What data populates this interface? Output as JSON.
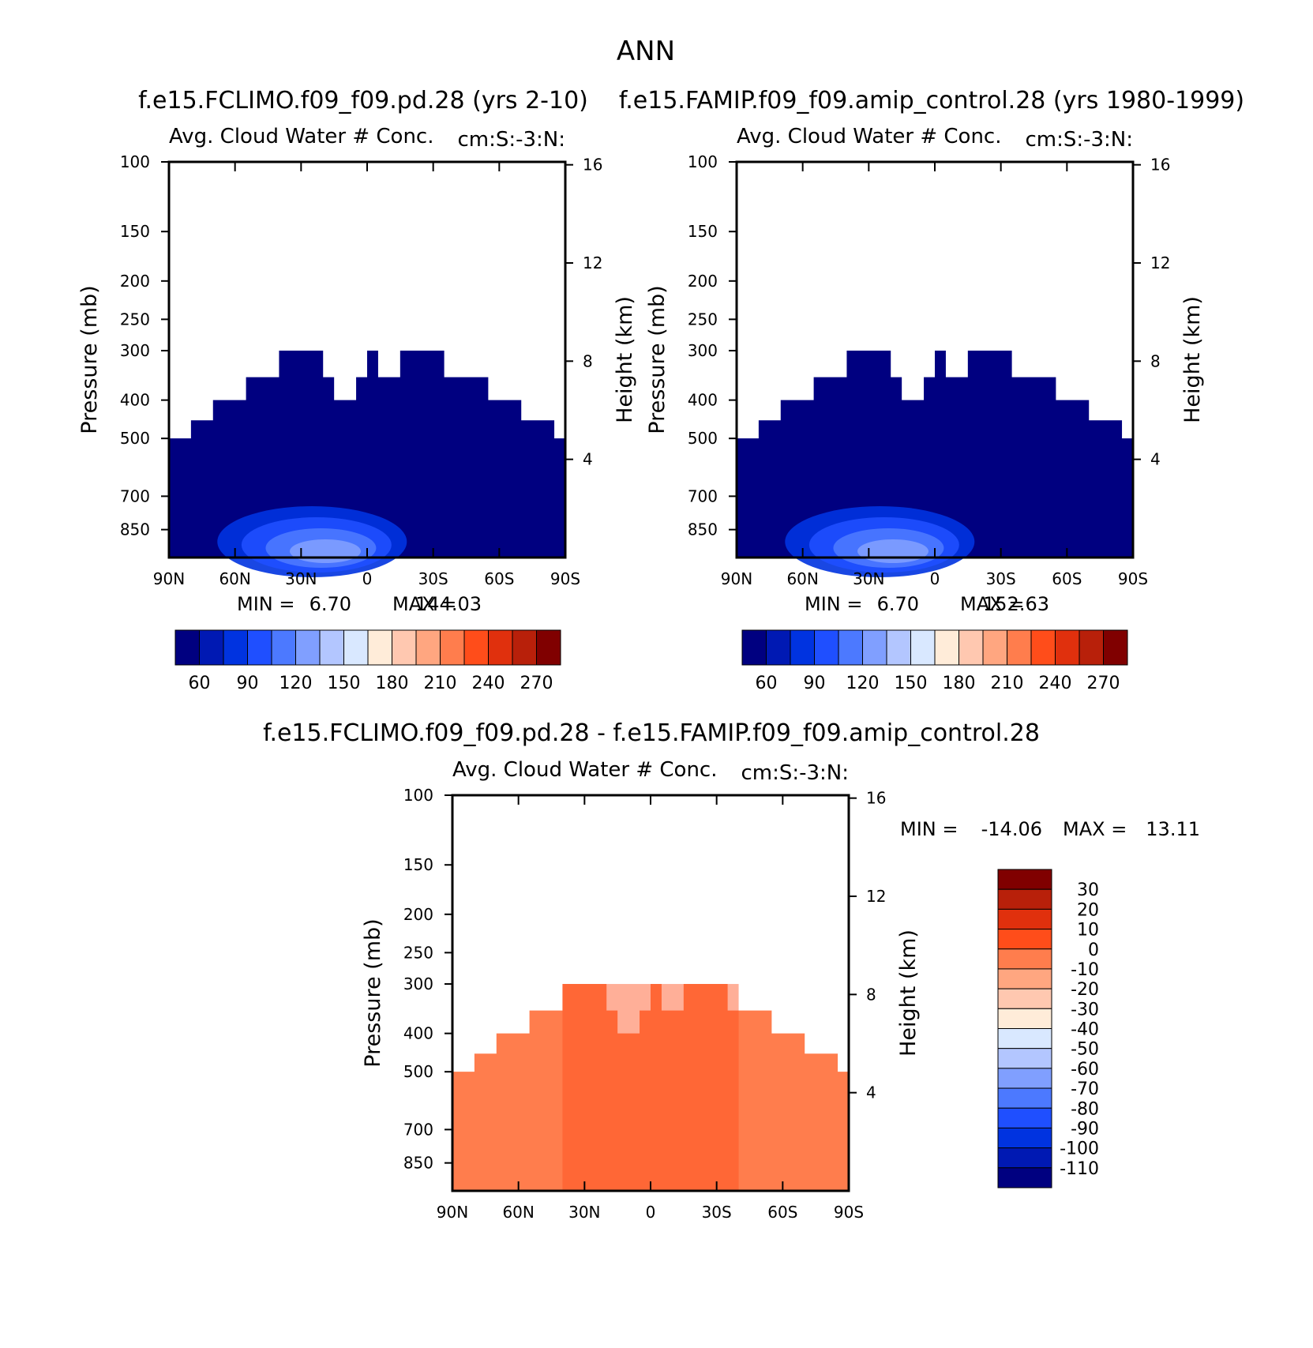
{
  "figure_title": "ANN",
  "chart_data": [
    {
      "type": "heatmap",
      "title": "f.e15.FCLIMO.f09_f09.pd.28 (yrs 2-10)",
      "panel_title": "Avg. Cloud Water # Conc.",
      "panel_units": "cm:S:-3:N:",
      "xlabel": "",
      "ylabel": "Pressure (mb)",
      "y2label": "Height (km)",
      "x_ticks": [
        "90N",
        "60N",
        "30N",
        "0",
        "30S",
        "60S",
        "90S"
      ],
      "y_ticks": [
        "100",
        "150",
        "200",
        "250",
        "300",
        "400",
        "500",
        "700",
        "850"
      ],
      "y_tick_values": [
        100,
        150,
        200,
        250,
        300,
        400,
        500,
        700,
        850
      ],
      "y2_ticks": [
        "16",
        "12",
        "8",
        "4"
      ],
      "y2_tick_values": [
        16,
        12,
        8,
        4
      ],
      "ylim": [
        100,
        1000
      ],
      "stats": {
        "min_label": "MIN =",
        "min": "6.70",
        "max_label": "MAX =",
        "max": "144.03"
      },
      "colorbar": {
        "orientation": "horizontal",
        "labels": [
          "60",
          "90",
          "120",
          "150",
          "180",
          "210",
          "240",
          "270"
        ]
      },
      "data_field": "full"
    },
    {
      "type": "heatmap",
      "title": "f.e15.FAMIP.f09_f09.amip_control.28 (yrs 1980-1999)",
      "panel_title": "Avg. Cloud Water # Conc.",
      "panel_units": "cm:S:-3:N:",
      "xlabel": "",
      "ylabel": "Pressure (mb)",
      "y2label": "Height (km)",
      "x_ticks": [
        "90N",
        "60N",
        "30N",
        "0",
        "30S",
        "60S",
        "90S"
      ],
      "y_ticks": [
        "100",
        "150",
        "200",
        "250",
        "300",
        "400",
        "500",
        "700",
        "850"
      ],
      "y_tick_values": [
        100,
        150,
        200,
        250,
        300,
        400,
        500,
        700,
        850
      ],
      "y2_ticks": [
        "16",
        "12",
        "8",
        "4"
      ],
      "y2_tick_values": [
        16,
        12,
        8,
        4
      ],
      "ylim": [
        100,
        1000
      ],
      "stats": {
        "min_label": "MIN =",
        "min": "6.70",
        "max_label": "MAX =",
        "max": "152.63"
      },
      "colorbar": {
        "orientation": "horizontal",
        "labels": [
          "60",
          "90",
          "120",
          "150",
          "180",
          "210",
          "240",
          "270"
        ]
      },
      "data_field": "full"
    },
    {
      "type": "heatmap",
      "title": "f.e15.FCLIMO.f09_f09.pd.28 - f.e15.FAMIP.f09_f09.amip_control.28",
      "panel_title": "Avg. Cloud Water # Conc.",
      "panel_units": "cm:S:-3:N:",
      "xlabel": "",
      "ylabel": "Pressure (mb)",
      "y2label": "Height (km)",
      "x_ticks": [
        "90N",
        "60N",
        "30N",
        "0",
        "30S",
        "60S",
        "90S"
      ],
      "y_ticks": [
        "100",
        "150",
        "200",
        "250",
        "300",
        "400",
        "500",
        "700",
        "850"
      ],
      "y_tick_values": [
        100,
        150,
        200,
        250,
        300,
        400,
        500,
        700,
        850
      ],
      "y2_ticks": [
        "16",
        "12",
        "8",
        "4"
      ],
      "y2_tick_values": [
        16,
        12,
        8,
        4
      ],
      "ylim": [
        100,
        1000
      ],
      "stats": {
        "min_label": "MIN =",
        "min": "-14.06",
        "max_label": "MAX =",
        "max": "13.11"
      },
      "colorbar": {
        "orientation": "vertical",
        "labels": [
          "30",
          "20",
          "10",
          "0",
          "-10",
          "-20",
          "-30",
          "-40",
          "-50",
          "-60",
          "-70",
          "-80",
          "-90",
          "-100",
          "-110"
        ]
      },
      "data_field": "difference"
    }
  ],
  "field": {
    "lat": [
      -90,
      -85,
      -80,
      -75,
      -70,
      -65,
      -60,
      -55,
      -50,
      -45,
      -40,
      -35,
      -30,
      -25,
      -20,
      -15,
      -10,
      -5,
      0,
      5,
      10,
      15,
      20,
      25,
      30,
      35,
      40,
      45,
      50,
      55,
      60,
      65,
      70,
      75,
      80,
      85,
      90
    ],
    "top_pressure_mb": [
      500,
      500,
      450,
      450,
      450,
      400,
      400,
      400,
      350,
      350,
      350,
      350,
      300,
      300,
      300,
      300,
      350,
      350,
      300,
      350,
      400,
      400,
      350,
      300,
      300,
      300,
      300,
      350,
      350,
      350,
      400,
      400,
      400,
      450,
      450,
      500,
      500
    ],
    "full_value": 40,
    "difference_value": 5
  },
  "colors": {
    "full_scale": [
      "#000080",
      "#0019b3",
      "#0033e0",
      "#1f4fff",
      "#4c79ff",
      "#809fff",
      "#b3c6ff",
      "#d9e8ff",
      "#ffecd9",
      "#ffc8b0",
      "#ffa680",
      "#ff7d4d",
      "#ff4d1a",
      "#e0300d",
      "#b8200a",
      "#800000"
    ],
    "diff_scale_top_down": [
      "#800000",
      "#b8200a",
      "#e0300d",
      "#ff4d1a",
      "#ff7d4d",
      "#ffa680",
      "#ffc8b0",
      "#ffecd9",
      "#d9e8ff",
      "#b3c6ff",
      "#809fff",
      "#4c79ff",
      "#1f4fff",
      "#0033e0",
      "#0019b3",
      "#000080"
    ],
    "full_fill": "#000080",
    "diff_fill": "#ff7d4d",
    "diff_accent": "#ff4d1a",
    "low_level_accents": [
      "#0033e0",
      "#1f4fff",
      "#4c79ff",
      "#809fff"
    ]
  }
}
